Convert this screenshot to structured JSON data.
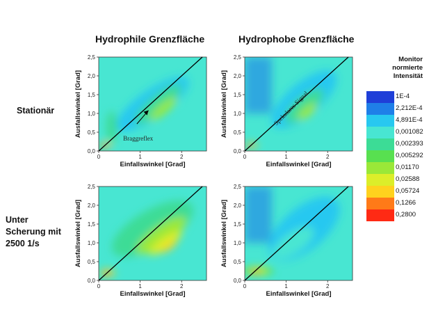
{
  "column_titles": [
    "Hydrophile Grenzfläche",
    "Hydrophobe Grenzfläche"
  ],
  "row_labels": [
    [
      "Stationär"
    ],
    [
      "Unter",
      "Scherung mit",
      "2500 1/s"
    ]
  ],
  "legend": {
    "title_lines": [
      "Monitor",
      "normierte",
      "Intensität"
    ],
    "items": [
      {
        "label": "1E-4",
        "color": "#1f3fd8"
      },
      {
        "label": "2,212E-4",
        "color": "#1f7fe8"
      },
      {
        "label": "4,891E-4",
        "color": "#28c8f0"
      },
      {
        "label": "0,001082",
        "color": "#48e6d2"
      },
      {
        "label": "0,002393",
        "color": "#3cdc96"
      },
      {
        "label": "0,005292",
        "color": "#58e050"
      },
      {
        "label": "0,01170",
        "color": "#9ae838"
      },
      {
        "label": "0,02588",
        "color": "#dcee2a"
      },
      {
        "label": "0,05724",
        "color": "#ffd21e"
      },
      {
        "label": "0,1266",
        "color": "#ff7a18"
      },
      {
        "label": "0,2800",
        "color": "#ff2a14"
      }
    ]
  },
  "chart_data": [
    {
      "type": "heatmap",
      "title": "Hydrophile Grenzfläche",
      "row": "Stationär",
      "xlabel": "Einfallswinkel [Grad]",
      "ylabel": "Ausfallswinkel [Grad]",
      "xlim": [
        0,
        2.6
      ],
      "ylim": [
        0,
        2.5
      ],
      "x_ticks": [
        0,
        1,
        2
      ],
      "y_ticks": [
        "0,0",
        "0,5",
        "1,0",
        "1,5",
        "2,0",
        "2,5"
      ],
      "diagonal": true,
      "annotations": [
        "Braggreflex"
      ]
    },
    {
      "type": "heatmap",
      "title": "Hydrophobe Grenzfläche",
      "row": "Stationär",
      "xlabel": "Einfallswinkel [Grad]",
      "ylabel": "Ausfallswinkel [Grad]",
      "xlim": [
        0,
        2.6
      ],
      "ylim": [
        0,
        2.5
      ],
      "x_ticks": [
        0,
        1,
        2
      ],
      "y_ticks": [
        "0,0",
        "0,5",
        "1,0",
        "1,5",
        "2,0",
        "2,5"
      ],
      "diagonal": true,
      "annotations": [
        "Spekulares Signal"
      ]
    },
    {
      "type": "heatmap",
      "title": "Hydrophile Grenzfläche",
      "row": "Unter Scherung mit 2500 1/s",
      "xlabel": "Einfallswinkel [Grad]",
      "ylabel": "Ausfallswinkel [Grad]",
      "xlim": [
        0,
        2.6
      ],
      "ylim": [
        0,
        2.5
      ],
      "x_ticks": [
        0,
        1,
        2
      ],
      "y_ticks": [
        "0,0",
        "0,5",
        "1,0",
        "1,5",
        "2,0",
        "2,5"
      ],
      "diagonal": true,
      "annotations": []
    },
    {
      "type": "heatmap",
      "title": "Hydrophobe Grenzfläche",
      "row": "Unter Scherung mit 2500 1/s",
      "xlabel": "Einfallswinkel [Grad]",
      "ylabel": "Ausfallswinkel [Grad]",
      "xlim": [
        0,
        2.6
      ],
      "ylim": [
        0,
        2.5
      ],
      "x_ticks": [
        0,
        1,
        2
      ],
      "y_ticks": [
        "0,0",
        "0,5",
        "1,0",
        "1,5",
        "2,0",
        "2,5"
      ],
      "diagonal": true,
      "annotations": []
    }
  ]
}
